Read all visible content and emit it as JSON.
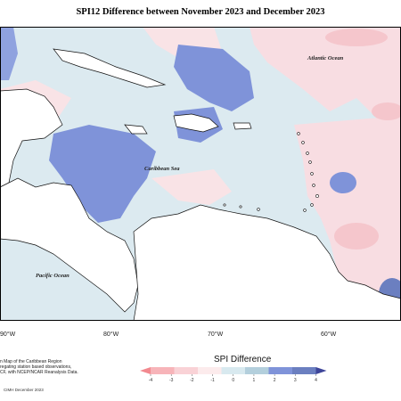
{
  "title": "SPI12 Difference between November 2023 and December 2023",
  "labels": {
    "atlantic": "Atlantic Ocean",
    "caribbean": "Caribbean Sea",
    "pacific": "Pacific Ocean"
  },
  "longitudes": [
    "90°W",
    "80°W",
    "70°W",
    "60°W"
  ],
  "legend": {
    "title": "SPI Difference",
    "ticks": [
      "-4",
      "-3",
      "-2",
      "-1",
      "0",
      "1",
      "2",
      "3",
      "4"
    ],
    "colors": [
      "#f2898f",
      "#f7b4b9",
      "#f9d2d6",
      "#fcebec",
      "#d8e9ef",
      "#b3cfdc",
      "#7f93d9",
      "#6b7fc0",
      "#3d4599"
    ]
  },
  "description": [
    "n Map of the Caribbean Region",
    "regating station based observations,",
    "CF, with NCEP/NCAR Reanalysis Data."
  ],
  "credit": "CIMH December 2023"
}
